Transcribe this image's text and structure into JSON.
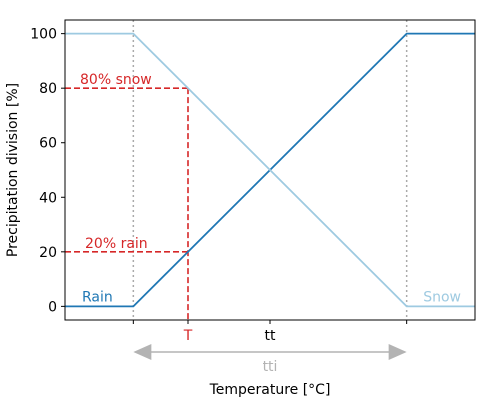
{
  "chart_data": {
    "type": "line",
    "xlabel": "Temperature [°C]",
    "ylabel": "Precipitation division [%]",
    "ylim": [
      -5,
      105
    ],
    "xlim": [
      -0.25,
      1.25
    ],
    "yticks": [
      0,
      20,
      40,
      60,
      80,
      100
    ],
    "x_ticks": [
      {
        "value": 0.5,
        "label": "tt",
        "color": "#000000"
      },
      {
        "value": 0.2,
        "label": "T",
        "color": "#d62728"
      }
    ],
    "series": [
      {
        "name": "Rain",
        "color": "#1f77b4",
        "x": [
          -0.25,
          0,
          1,
          1.25
        ],
        "y": [
          0,
          0,
          100,
          100
        ]
      },
      {
        "name": "Snow",
        "color": "#9ecae1",
        "x": [
          -0.25,
          0,
          1,
          1.25
        ],
        "y": [
          100,
          100,
          0,
          0
        ]
      }
    ],
    "vlines": [
      {
        "x": 0,
        "color": "#aaaaaa",
        "style": "dotted"
      },
      {
        "x": 1,
        "color": "#aaaaaa",
        "style": "dotted"
      }
    ],
    "markers": {
      "color": "#d62728",
      "style": "dashed",
      "t_value": 0.2,
      "snow_level": 80,
      "rain_level": 20
    },
    "annotations": {
      "snow_label": "80% snow",
      "rain_label": "20% rain",
      "series_rain_label": "Rain",
      "series_snow_label": "Snow"
    },
    "range_arrow": {
      "label": "tti",
      "from": 0,
      "to": 1,
      "color": "#b3b3b3"
    },
    "grid": false
  }
}
